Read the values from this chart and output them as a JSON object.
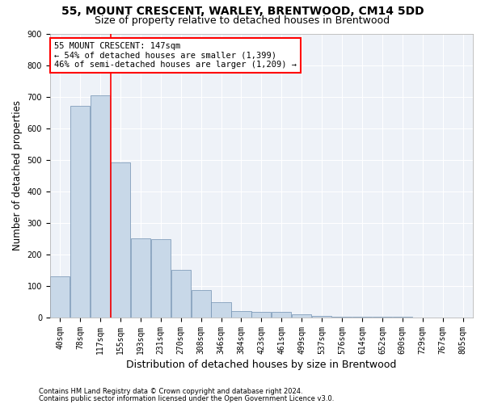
{
  "title1": "55, MOUNT CRESCENT, WARLEY, BRENTWOOD, CM14 5DD",
  "title2": "Size of property relative to detached houses in Brentwood",
  "xlabel": "Distribution of detached houses by size in Brentwood",
  "ylabel": "Number of detached properties",
  "footnote1": "Contains HM Land Registry data © Crown copyright and database right 2024.",
  "footnote2": "Contains public sector information licensed under the Open Government Licence v3.0.",
  "bar_labels": [
    "40sqm",
    "78sqm",
    "117sqm",
    "155sqm",
    "193sqm",
    "231sqm",
    "270sqm",
    "308sqm",
    "346sqm",
    "384sqm",
    "423sqm",
    "461sqm",
    "499sqm",
    "537sqm",
    "576sqm",
    "614sqm",
    "652sqm",
    "690sqm",
    "729sqm",
    "767sqm",
    "805sqm"
  ],
  "bar_values": [
    130,
    670,
    705,
    490,
    250,
    248,
    150,
    85,
    48,
    20,
    17,
    17,
    10,
    5,
    2,
    2,
    1,
    1,
    0,
    0,
    0
  ],
  "bar_color": "#c8d8e8",
  "bar_edge_color": "#7090b0",
  "vline_x": 2.5,
  "vline_color": "red",
  "annotation_text": "55 MOUNT CRESCENT: 147sqm\n← 54% of detached houses are smaller (1,399)\n46% of semi-detached houses are larger (1,209) →",
  "annotation_box_color": "white",
  "annotation_box_edge": "red",
  "ylim": [
    0,
    900
  ],
  "yticks": [
    0,
    100,
    200,
    300,
    400,
    500,
    600,
    700,
    800,
    900
  ],
  "background_color": "#eef2f8",
  "grid_color": "white",
  "title_fontsize": 10,
  "subtitle_fontsize": 9,
  "axis_label_fontsize": 8.5,
  "tick_fontsize": 7,
  "annotation_fontsize": 7.5
}
